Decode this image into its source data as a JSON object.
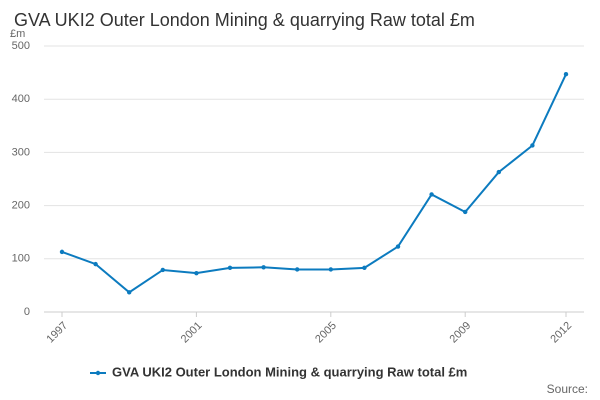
{
  "chart_data": {
    "type": "line",
    "title": "GVA UKI2 Outer London Mining & quarrying Raw total £m",
    "y_label": "£m",
    "source": "Source:",
    "x": [
      1997,
      1998,
      1999,
      2000,
      2001,
      2002,
      2003,
      2004,
      2005,
      2006,
      2007,
      2008,
      2009,
      2010,
      2011,
      2012
    ],
    "series": [
      {
        "name": "GVA UKI2 Outer London Mining & quarrying Raw total £m",
        "color": "#0c7bbf",
        "values": [
          113,
          90,
          37,
          79,
          73,
          83,
          84,
          80,
          80,
          83,
          123,
          221,
          188,
          263,
          313,
          447
        ]
      }
    ],
    "xlim": [
      1997,
      2012
    ],
    "xticks": [
      1997,
      2001,
      2005,
      2009,
      2012
    ],
    "ylim": [
      0,
      500
    ],
    "yticks": [
      0,
      100,
      200,
      300,
      400,
      500
    ],
    "grid": true,
    "legend": "bottom"
  }
}
